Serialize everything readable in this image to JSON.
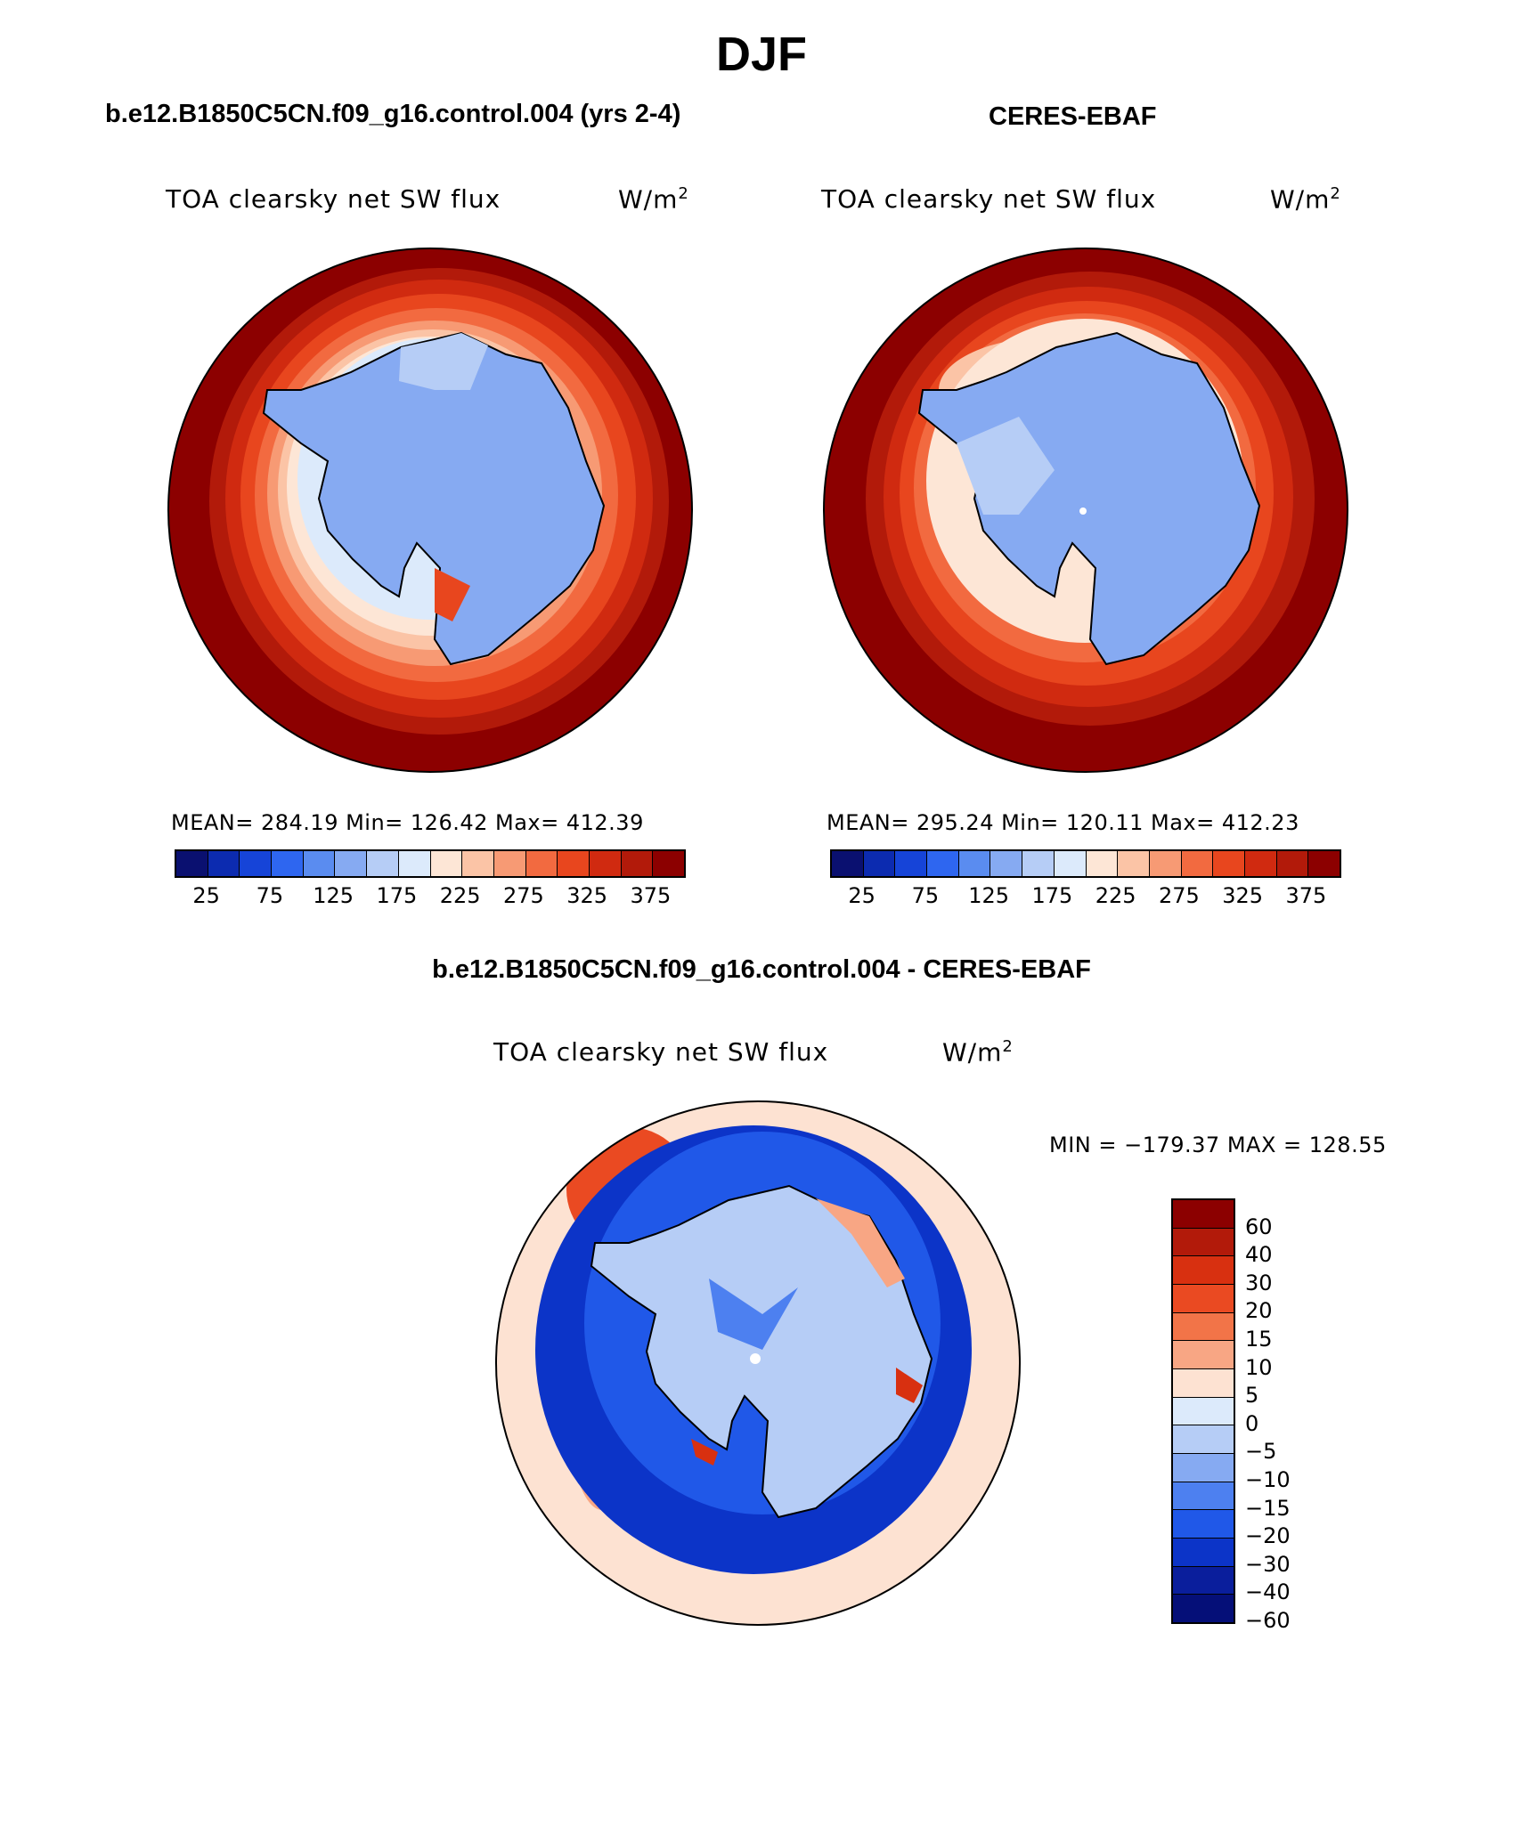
{
  "title": "DJF",
  "panels": {
    "model": {
      "title": "b.e12.B1850C5CN.f09_g16.control.004 (yrs 2-4)",
      "variable": "TOA clearsky net SW flux",
      "units_base": "W/m",
      "units_exp": "2",
      "stats": "MEAN= 284.19   Min= 126.42   Max= 412.39"
    },
    "obs": {
      "title": "CERES-EBAF",
      "variable": "TOA clearsky net SW flux",
      "units_base": "W/m",
      "units_exp": "2",
      "stats": "MEAN= 295.24   Min= 120.11   Max= 412.23"
    },
    "diff": {
      "title": "b.e12.B1850C5CN.f09_g16.control.004 - CERES-EBAF",
      "variable": "TOA clearsky net SW flux",
      "units_base": "W/m",
      "units_exp": "2",
      "stats": "MIN = −179.37 MAX = 128.55"
    }
  },
  "abs_colorbar": {
    "colors": [
      "#0a1070",
      "#0c2bb0",
      "#1644d8",
      "#2e66f0",
      "#5a8cf0",
      "#86aaf2",
      "#b6cdf6",
      "#dceafb",
      "#fde6d6",
      "#fbc4a6",
      "#f79a74",
      "#f26a40",
      "#e8461e",
      "#d02a10",
      "#b21a0a",
      "#8c0000"
    ],
    "tick_labels": [
      "25",
      "75",
      "125",
      "175",
      "225",
      "275",
      "325",
      "375"
    ]
  },
  "diff_colorbar": {
    "colors": [
      "#8c0000",
      "#b21a0a",
      "#d83010",
      "#ea4a22",
      "#f27448",
      "#f8a684",
      "#fde2d2",
      "#dceafb",
      "#b6cdf6",
      "#86aaf2",
      "#4d80f0",
      "#2058e8",
      "#0c34c8",
      "#0a1e9c",
      "#050f78"
    ],
    "tick_labels": [
      "60",
      "40",
      "30",
      "20",
      "15",
      "10",
      "5",
      "0",
      "−5",
      "−10",
      "−15",
      "−20",
      "−30",
      "−40",
      "−60"
    ]
  }
}
